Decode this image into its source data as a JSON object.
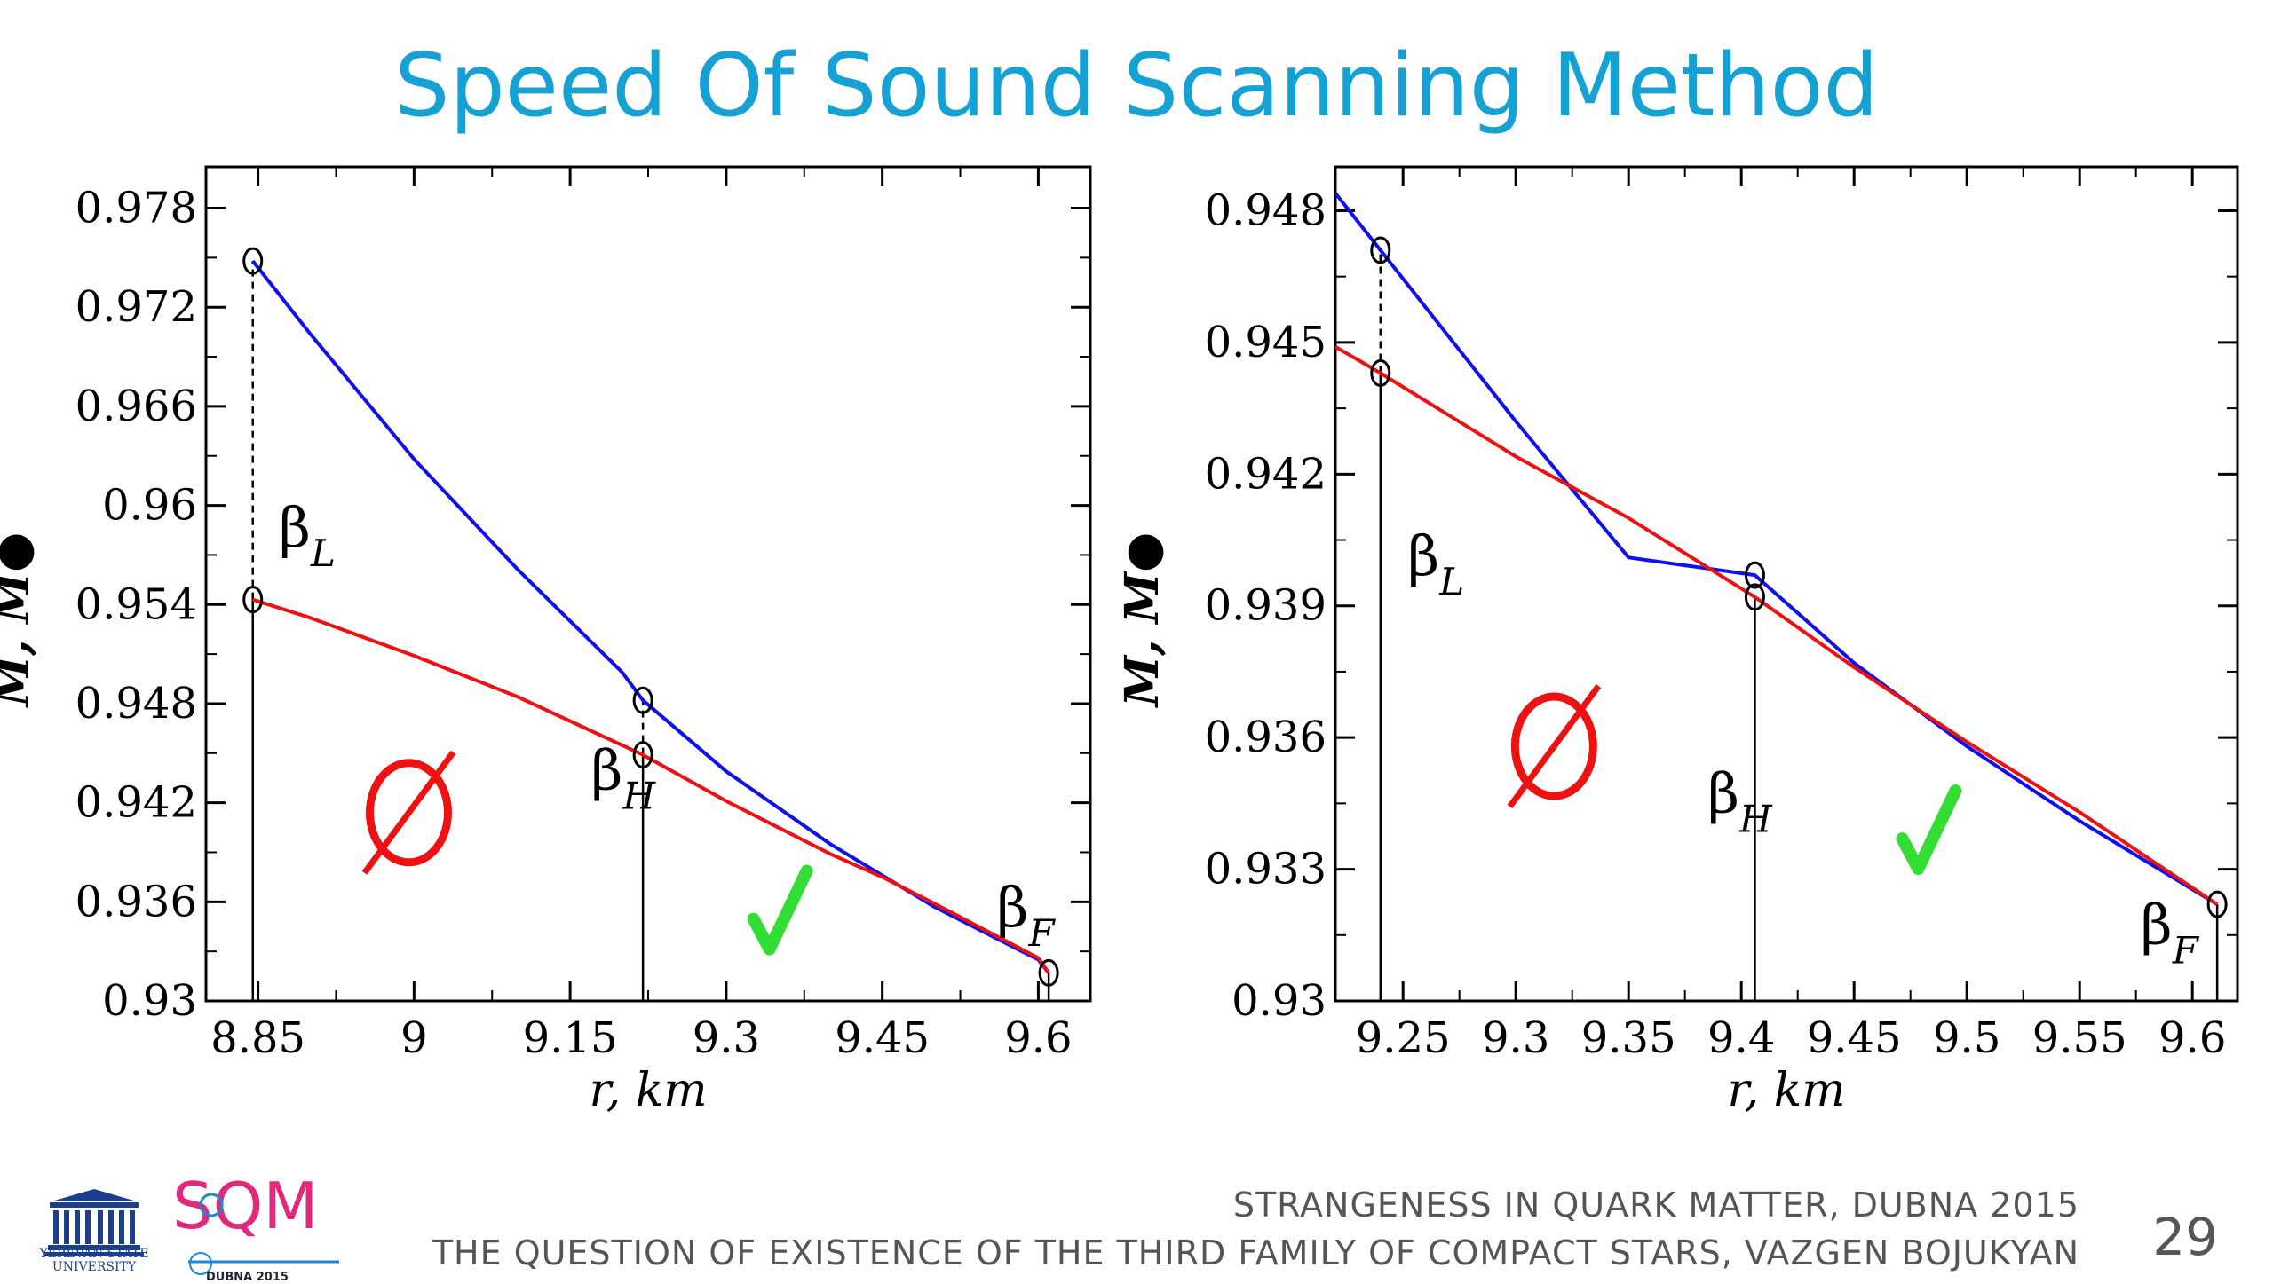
{
  "slide": {
    "title": "Speed Of Sound Scanning Method",
    "footer_line1": "STRANGENESS IN QUARK MATTER,  DUBNA 2015",
    "footer_line2": "THE QUESTION OF EXISTENCE OF THE THIRD FAMILY OF COMPACT STARS, VAZGEN BOJUKYAN",
    "page_number": "29",
    "logos": {
      "left_text_line1": "YEREVAN STATE",
      "left_text_line2": "UNIVERSITY",
      "right_sub": "DUBNA 2015",
      "right_word": "SQM"
    }
  },
  "colors": {
    "title": "#16a1d4",
    "blue_curve": "#1010ee",
    "red_curve": "#ee1111",
    "check": "#33dd33",
    "empty_set": "#ee1111"
  },
  "chart_data": [
    {
      "type": "line",
      "xlabel": "r, km",
      "ylabel": "M, M●",
      "xlim": [
        8.8,
        9.65
      ],
      "ylim": [
        0.93,
        0.9805
      ],
      "x_ticks": [
        8.85,
        9,
        9.15,
        9.3,
        9.45,
        9.6
      ],
      "x_tick_labels": [
        "8.85",
        "9",
        "9.15",
        "9.3",
        "9.45",
        "9.6"
      ],
      "y_ticks": [
        0.93,
        0.936,
        0.942,
        0.948,
        0.954,
        0.96,
        0.966,
        0.972,
        0.978
      ],
      "y_tick_labels": [
        "0.93",
        "0.936",
        "0.942",
        "0.948",
        "0.954",
        "0.96",
        "0.966",
        "0.972",
        "0.978"
      ],
      "series": [
        {
          "color": "blue",
          "x": [
            8.845,
            8.9,
            9.0,
            9.1,
            9.2,
            9.22,
            9.3,
            9.4,
            9.45,
            9.5,
            9.6,
            9.61
          ],
          "y": [
            0.9748,
            0.9704,
            0.9628,
            0.9561,
            0.9499,
            0.9482,
            0.9439,
            0.9395,
            0.9376,
            0.9357,
            0.9325,
            0.9317
          ]
        },
        {
          "color": "red",
          "x": [
            8.845,
            8.9,
            9.0,
            9.1,
            9.22,
            9.3,
            9.4,
            9.45,
            9.5,
            9.6,
            9.61
          ],
          "y": [
            0.9543,
            0.9532,
            0.9509,
            0.9484,
            0.9449,
            0.9421,
            0.9389,
            0.9375,
            0.9359,
            0.9326,
            0.9317
          ]
        }
      ],
      "markers": [
        {
          "x": 8.845,
          "y": 0.9748,
          "kind": "dashed"
        },
        {
          "x": 8.845,
          "y": 0.9543,
          "kind": "solid"
        },
        {
          "x": 9.22,
          "y": 0.9482,
          "kind": "dashed"
        },
        {
          "x": 9.22,
          "y": 0.9449,
          "kind": "solid"
        },
        {
          "x": 9.61,
          "y": 0.9317,
          "kind": "solid"
        }
      ],
      "annotations": [
        {
          "symbol": "β",
          "sub": "L",
          "x": 8.87,
          "y": 0.9575
        },
        {
          "symbol": "β",
          "sub": "H",
          "x": 9.17,
          "y": 0.9428
        },
        {
          "symbol": "β",
          "sub": "F",
          "x": 9.56,
          "y": 0.9345
        }
      ],
      "empty_set": {
        "x": 8.995,
        "y": 0.9414
      },
      "check": {
        "x": 9.345,
        "y": 0.9355
      }
    },
    {
      "type": "line",
      "xlabel": "r, km",
      "ylabel": "M, M●",
      "xlim": [
        9.22,
        9.62
      ],
      "ylim": [
        0.93,
        0.949
      ],
      "x_ticks": [
        9.25,
        9.3,
        9.35,
        9.4,
        9.45,
        9.5,
        9.55,
        9.6
      ],
      "x_tick_labels": [
        "9.25",
        "9.3",
        "9.35",
        "9.4",
        "9.45",
        "9.5",
        "9.55",
        "9.6"
      ],
      "y_ticks": [
        0.93,
        0.933,
        0.936,
        0.939,
        0.942,
        0.945,
        0.948
      ],
      "y_tick_labels": [
        "0.93",
        "0.933",
        "0.936",
        "0.939",
        "0.942",
        "0.945",
        "0.948"
      ],
      "series": [
        {
          "color": "blue",
          "x": [
            9.22,
            9.24,
            9.3,
            9.35,
            9.406,
            9.45,
            9.5,
            9.55,
            9.611
          ],
          "y": [
            0.9484,
            0.9471,
            0.9432,
            0.9401,
            0.9397,
            0.9377,
            0.9358,
            0.9341,
            0.9322
          ]
        },
        {
          "color": "red",
          "x": [
            9.22,
            9.24,
            9.3,
            9.35,
            9.406,
            9.45,
            9.5,
            9.55,
            9.611
          ],
          "y": [
            0.9449,
            0.9443,
            0.9424,
            0.941,
            0.9392,
            0.9376,
            0.9359,
            0.9343,
            0.9322
          ]
        }
      ],
      "markers": [
        {
          "x": 9.24,
          "y": 0.9471,
          "kind": "dashed"
        },
        {
          "x": 9.24,
          "y": 0.9443,
          "kind": "solid"
        },
        {
          "x": 9.406,
          "y": 0.9397,
          "kind": "solid"
        },
        {
          "x": 9.406,
          "y": 0.9392,
          "kind": "solid"
        },
        {
          "x": 9.611,
          "y": 0.9322,
          "kind": "solid"
        }
      ],
      "annotations": [
        {
          "symbol": "β",
          "sub": "L",
          "x": 9.252,
          "y": 0.9397
        },
        {
          "symbol": "β",
          "sub": "H",
          "x": 9.385,
          "y": 0.9343
        },
        {
          "symbol": "β",
          "sub": "F",
          "x": 9.577,
          "y": 0.9313
        }
      ],
      "empty_set": {
        "x": 9.317,
        "y": 0.9358
      },
      "check": {
        "x": 9.48,
        "y": 0.9339
      }
    }
  ]
}
